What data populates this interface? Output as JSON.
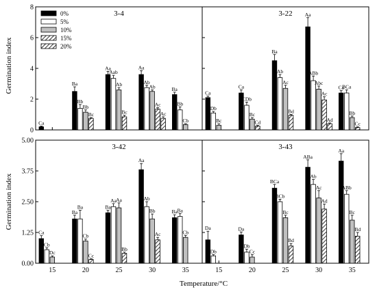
{
  "figure": {
    "y_axis_label": "Germination index",
    "x_axis_label": "Temperature/°C",
    "legend": [
      "0%",
      "5%",
      "10%",
      "15%",
      "20%"
    ]
  },
  "chart_data": [
    {
      "type": "bar",
      "title": "3-4",
      "categories": [
        "15",
        "20",
        "25",
        "30",
        "35"
      ],
      "ylim": [
        0,
        8
      ],
      "yticks": [
        "0",
        "2",
        "4",
        "6",
        "8"
      ],
      "series": [
        {
          "name": "0%",
          "values": [
            0.2,
            2.5,
            3.6,
            3.6,
            2.3
          ],
          "errors": [
            0.05,
            0.3,
            0.2,
            0.25,
            0.15
          ],
          "labels": [
            "Ca",
            "Ba",
            "Aa",
            "Aa",
            "Ba"
          ]
        },
        {
          "name": "5%",
          "values": [
            0,
            1.4,
            3.35,
            2.75,
            1.3
          ],
          "errors": [
            0,
            0.25,
            0.2,
            0.15,
            0.2
          ],
          "labels": [
            "",
            "Bb",
            "Aab",
            "Ab",
            "Bb"
          ]
        },
        {
          "name": "10%",
          "values": [
            0,
            1.15,
            2.6,
            2.5,
            0.35
          ],
          "errors": [
            0,
            0.15,
            0.15,
            0.1,
            0.05
          ],
          "labels": [
            "",
            "Bb",
            "Ab",
            "Ab",
            "Cb"
          ]
        },
        {
          "name": "15%",
          "values": [
            0,
            0.75,
            0.85,
            1.35,
            0
          ],
          "errors": [
            0,
            0.05,
            0.1,
            0.1,
            0
          ],
          "labels": [
            "",
            "Bc",
            "Bc",
            "Ac",
            ""
          ]
        },
        {
          "name": "20%",
          "values": [
            0,
            0,
            0,
            0.75,
            0
          ],
          "errors": [
            0,
            0,
            0,
            0.1,
            0
          ],
          "labels": [
            "",
            "",
            "",
            "Ac",
            ""
          ]
        }
      ]
    },
    {
      "type": "bar",
      "title": "3-22",
      "categories": [
        "15",
        "20",
        "25",
        "30",
        "35"
      ],
      "ylim": [
        0,
        8
      ],
      "yticks": [
        "0",
        "2",
        "4",
        "6",
        "8"
      ],
      "series": [
        {
          "name": "0%",
          "values": [
            2.1,
            2.4,
            4.5,
            6.7,
            2.4
          ],
          "errors": [
            0.1,
            0.2,
            0.4,
            0.6,
            0.15
          ],
          "labels": [
            "Ca",
            "Ca",
            "Ba",
            "Aa",
            "Ca"
          ]
        },
        {
          "name": "5%",
          "values": [
            1.1,
            1.6,
            3.4,
            3.2,
            2.4
          ],
          "errors": [
            0.1,
            0.2,
            0.2,
            0.3,
            0.2
          ],
          "labels": [
            "Db",
            "CDb",
            "Ab",
            "ABb",
            "BCa"
          ]
        },
        {
          "name": "10%",
          "values": [
            0.3,
            0.7,
            2.7,
            2.65,
            0.8
          ],
          "errors": [
            0.1,
            0.1,
            0.2,
            0.2,
            0.1
          ],
          "labels": [
            "Bc",
            "Bc",
            "Ac",
            "Abc",
            "Bb"
          ]
        },
        {
          "name": "15%",
          "values": [
            0,
            0.25,
            0.95,
            1.95,
            0.15
          ],
          "errors": [
            0,
            0.05,
            0.05,
            0.2,
            0.05
          ],
          "labels": [
            "",
            "Cd",
            "Bd",
            "Ac",
            "Cc"
          ]
        },
        {
          "name": "20%",
          "values": [
            0,
            0,
            0,
            0.4,
            0
          ],
          "errors": [
            0,
            0,
            0,
            0.05,
            0
          ],
          "labels": [
            "",
            "",
            "",
            "Ad",
            ""
          ]
        }
      ]
    },
    {
      "type": "bar",
      "title": "3-42",
      "categories": [
        "15",
        "20",
        "25",
        "30",
        "35"
      ],
      "ylim": [
        0,
        5
      ],
      "yticks": [
        "0.00",
        "1.25",
        "2.50",
        "3.75",
        "5.00"
      ],
      "series": [
        {
          "name": "0%",
          "values": [
            1.0,
            1.8,
            2.05,
            3.8,
            1.85
          ],
          "errors": [
            0.12,
            0.15,
            0.1,
            0.25,
            0.12
          ],
          "labels": [
            "Ca",
            "Ba",
            "Ba",
            "Aa",
            "Ba"
          ]
        },
        {
          "name": "5%",
          "values": [
            0.55,
            1.8,
            2.3,
            2.3,
            1.9
          ],
          "errors": [
            0.08,
            0.35,
            0.12,
            0.2,
            0.12
          ],
          "labels": [
            "Cb",
            "Ba",
            "Aa",
            "Ab",
            "Ba"
          ]
        },
        {
          "name": "10%",
          "values": [
            0.25,
            0.9,
            2.25,
            1.8,
            1.05
          ],
          "errors": [
            0.05,
            0.08,
            0.2,
            0.2,
            0.08
          ],
          "labels": [
            "Dc",
            "Cb",
            "Aa",
            "Bb",
            "Cb"
          ]
        },
        {
          "name": "15%",
          "values": [
            0,
            0.15,
            0.4,
            0.95,
            0
          ],
          "errors": [
            0,
            0.03,
            0.05,
            0.1,
            0
          ],
          "labels": [
            "",
            "Cc",
            "Bb",
            "Ac",
            ""
          ]
        },
        {
          "name": "20%",
          "values": [
            0,
            0,
            0,
            0,
            0
          ],
          "errors": [
            0,
            0,
            0,
            0,
            0
          ],
          "labels": [
            "",
            "",
            "",
            "",
            ""
          ]
        }
      ]
    },
    {
      "type": "bar",
      "title": "3-43",
      "categories": [
        "15",
        "20",
        "25",
        "30",
        "35"
      ],
      "ylim": [
        0,
        5
      ],
      "yticks": [
        "0.00",
        "1.25",
        "2.50",
        "3.75",
        "5.00"
      ],
      "series": [
        {
          "name": "0%",
          "values": [
            0.95,
            1.15,
            3.05,
            3.9,
            4.15
          ],
          "errors": [
            0.35,
            0.12,
            0.15,
            0.3,
            0.3
          ],
          "labels": [
            "Da",
            "Da",
            "BCa",
            "ABa",
            "Aa"
          ]
        },
        {
          "name": "5%",
          "values": [
            0.3,
            0.45,
            2.5,
            3.2,
            2.8
          ],
          "errors": [
            0.05,
            0.12,
            0.1,
            0.2,
            0.15
          ],
          "labels": [
            "Db",
            "Db",
            "BCb",
            "Ab",
            "ABb"
          ]
        },
        {
          "name": "10%",
          "values": [
            0,
            0.25,
            1.85,
            2.65,
            1.75
          ],
          "errors": [
            0,
            0.1,
            0.1,
            0.3,
            0.2
          ],
          "labels": [
            "",
            "Cc",
            "Bc",
            "Ac",
            "Bc"
          ]
        },
        {
          "name": "15%",
          "values": [
            0,
            0,
            0.7,
            2.2,
            1.1
          ],
          "errors": [
            0,
            0,
            0.1,
            0.2,
            0.15
          ],
          "labels": [
            "",
            "",
            "Bd",
            "Ad",
            "Bd"
          ]
        },
        {
          "name": "20%",
          "values": [
            0,
            0,
            0,
            0,
            0
          ],
          "errors": [
            0,
            0,
            0,
            0,
            0
          ],
          "labels": [
            "",
            "",
            "",
            "",
            ""
          ]
        }
      ]
    }
  ]
}
